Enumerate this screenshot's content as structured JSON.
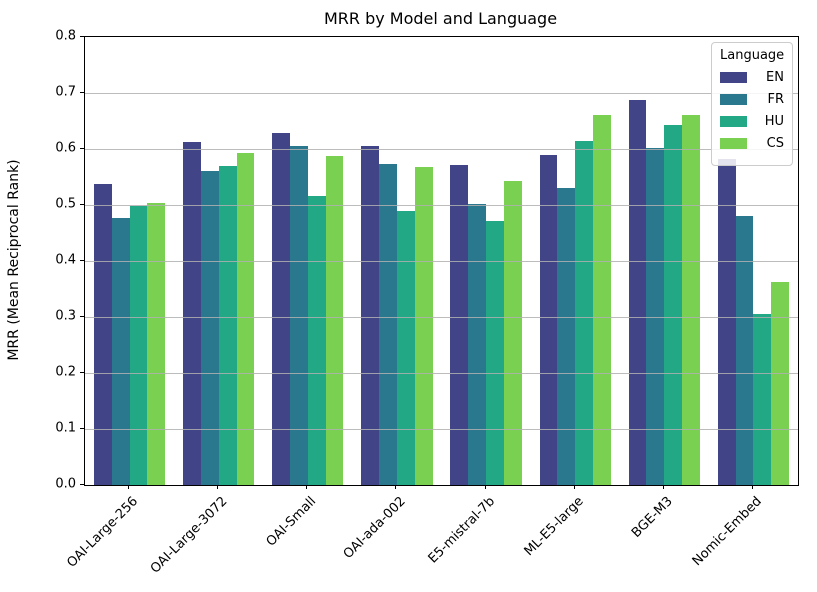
{
  "title": "MRR by Model and Language",
  "ylabel": "MRR  (Mean Reciprocal Rank)",
  "legend": {
    "title": "Language"
  },
  "colors": {
    "EN": "#414487",
    "FR": "#2a788e",
    "HU": "#22a884",
    "CS": "#7ad151",
    "grid": "#b0b0b0",
    "axis": "#000000",
    "background": "#ffffff"
  },
  "chart_data": {
    "type": "bar",
    "title": "MRR by Model and Language",
    "xlabel": "",
    "ylabel": "MRR  (Mean Reciprocal Rank)",
    "ylim": [
      0,
      0.8
    ],
    "yticks": [
      0.0,
      0.1,
      0.2,
      0.3,
      0.4,
      0.5,
      0.6,
      0.7,
      0.8
    ],
    "grid": true,
    "grid_on_top": true,
    "legend_position": "upper right",
    "legend_title": "Language",
    "categories": [
      "OAI-Large-256",
      "OAI-Large-3072",
      "OAI-Small",
      "OAI-ada-002",
      "E5-mistral-7b",
      "ML-E5-large",
      "BGE-M3",
      "Nomic-Embed"
    ],
    "series": [
      {
        "name": "EN",
        "color": "#414487",
        "values": [
          0.537,
          0.612,
          0.628,
          0.606,
          0.572,
          0.59,
          0.687,
          0.583
        ]
      },
      {
        "name": "FR",
        "color": "#2a788e",
        "values": [
          0.477,
          0.561,
          0.605,
          0.573,
          0.502,
          0.531,
          0.601,
          0.48
        ]
      },
      {
        "name": "HU",
        "color": "#22a884",
        "values": [
          0.498,
          0.569,
          0.516,
          0.49,
          0.471,
          0.615,
          0.642,
          0.306
        ]
      },
      {
        "name": "CS",
        "color": "#7ad151",
        "values": [
          0.504,
          0.592,
          0.587,
          0.568,
          0.543,
          0.66,
          0.66,
          0.362
        ]
      }
    ]
  }
}
